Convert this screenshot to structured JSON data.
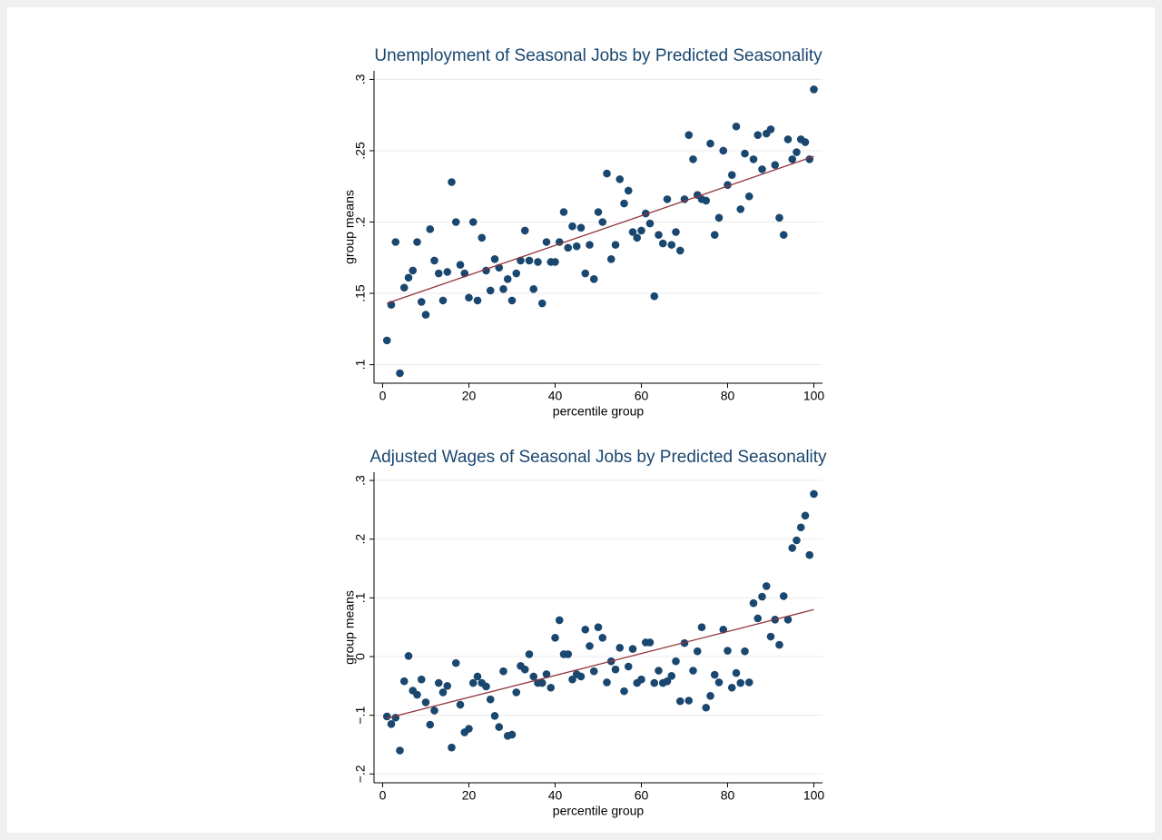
{
  "chart_data": [
    {
      "type": "scatter",
      "title": "Unemployment of Seasonal Jobs by Predicted Seasonality",
      "xlabel": "percentile group",
      "ylabel": "group means",
      "color": "#1a476f",
      "grid": true,
      "x": [
        1,
        2,
        3,
        4,
        5,
        6,
        7,
        8,
        9,
        10,
        11,
        12,
        13,
        14,
        15,
        16,
        17,
        18,
        19,
        20,
        21,
        22,
        23,
        24,
        25,
        26,
        27,
        28,
        29,
        30,
        31,
        32,
        33,
        34,
        35,
        36,
        37,
        38,
        39,
        40,
        41,
        42,
        43,
        44,
        45,
        46,
        47,
        48,
        49,
        50,
        51,
        52,
        53,
        54,
        55,
        56,
        57,
        58,
        59,
        60,
        61,
        62,
        63,
        64,
        65,
        66,
        67,
        68,
        69,
        70,
        71,
        72,
        73,
        74,
        75,
        76,
        77,
        78,
        79,
        80,
        81,
        82,
        83,
        84,
        85,
        86,
        87,
        88,
        89,
        90,
        91,
        92,
        93,
        94,
        95,
        96,
        97,
        98,
        99,
        100
      ],
      "values": [
        0.117,
        0.142,
        0.186,
        0.094,
        0.154,
        0.161,
        0.166,
        0.186,
        0.144,
        0.135,
        0.195,
        0.173,
        0.164,
        0.145,
        0.165,
        0.228,
        0.2,
        0.17,
        0.164,
        0.147,
        0.2,
        0.145,
        0.189,
        0.166,
        0.152,
        0.174,
        0.168,
        0.153,
        0.16,
        0.145,
        0.164,
        0.173,
        0.194,
        0.173,
        0.153,
        0.172,
        0.143,
        0.186,
        0.172,
        0.172,
        0.186,
        0.207,
        0.182,
        0.197,
        0.183,
        0.196,
        0.164,
        0.184,
        0.16,
        0.207,
        0.2,
        0.234,
        0.174,
        0.184,
        0.23,
        0.213,
        0.222,
        0.193,
        0.189,
        0.194,
        0.206,
        0.199,
        0.148,
        0.191,
        0.185,
        0.216,
        0.184,
        0.193,
        0.18,
        0.216,
        0.261,
        0.244,
        0.219,
        0.216,
        0.215,
        0.255,
        0.191,
        0.203,
        0.25,
        0.226,
        0.233,
        0.267,
        0.209,
        0.248,
        0.218,
        0.244,
        0.261,
        0.237,
        0.262,
        0.265,
        0.24,
        0.203,
        0.191,
        0.258,
        0.244,
        0.249,
        0.258,
        0.256,
        0.244,
        0.293
      ],
      "fit": {
        "x": [
          1,
          100
        ],
        "values": [
          0.143,
          0.246
        ],
        "color": "#90353b"
      },
      "xlim": [
        -2,
        102
      ],
      "ylim": [
        0.087,
        0.306
      ],
      "xticks": [
        0,
        20,
        40,
        60,
        80,
        100
      ],
      "yticks": [
        {
          "value": 0.1,
          "label": ".1"
        },
        {
          "value": 0.15,
          "label": ".15"
        },
        {
          "value": 0.2,
          "label": ".2"
        },
        {
          "value": 0.25,
          "label": ".25"
        },
        {
          "value": 0.3,
          "label": ".3"
        }
      ]
    },
    {
      "type": "scatter",
      "title": "Adjusted Wages of Seasonal Jobs by Predicted Seasonality",
      "xlabel": "percentile group",
      "ylabel": "group means",
      "color": "#1a476f",
      "grid": true,
      "x": [
        1,
        2,
        3,
        4,
        5,
        6,
        7,
        8,
        9,
        10,
        11,
        12,
        13,
        14,
        15,
        16,
        17,
        18,
        19,
        20,
        21,
        22,
        23,
        24,
        25,
        26,
        27,
        28,
        29,
        30,
        31,
        32,
        33,
        34,
        35,
        36,
        37,
        38,
        39,
        40,
        41,
        42,
        43,
        44,
        45,
        46,
        47,
        48,
        49,
        50,
        51,
        52,
        53,
        54,
        55,
        56,
        57,
        58,
        59,
        60,
        61,
        62,
        63,
        64,
        65,
        66,
        67,
        68,
        69,
        70,
        71,
        72,
        73,
        74,
        75,
        76,
        77,
        78,
        79,
        80,
        81,
        82,
        83,
        84,
        85,
        86,
        87,
        88,
        89,
        90,
        91,
        92,
        93,
        94,
        95,
        96,
        97,
        98,
        99,
        100
      ],
      "values": [
        -0.102,
        -0.115,
        -0.104,
        -0.16,
        -0.042,
        0.001,
        -0.058,
        -0.065,
        -0.039,
        -0.078,
        -0.116,
        -0.092,
        -0.045,
        -0.061,
        -0.05,
        -0.155,
        -0.011,
        -0.082,
        -0.129,
        -0.123,
        -0.045,
        -0.034,
        -0.045,
        -0.051,
        -0.073,
        -0.101,
        -0.12,
        -0.025,
        -0.135,
        -0.133,
        -0.061,
        -0.016,
        -0.022,
        0.004,
        -0.034,
        -0.045,
        -0.045,
        -0.03,
        -0.053,
        0.032,
        0.062,
        0.004,
        0.004,
        -0.039,
        -0.03,
        -0.034,
        0.046,
        0.018,
        -0.025,
        0.05,
        0.032,
        -0.044,
        -0.008,
        -0.022,
        0.015,
        -0.059,
        -0.017,
        0.013,
        -0.045,
        -0.039,
        0.024,
        0.024,
        -0.045,
        -0.024,
        -0.045,
        -0.042,
        -0.033,
        -0.008,
        -0.076,
        0.023,
        -0.075,
        -0.024,
        0.009,
        0.05,
        -0.087,
        -0.067,
        -0.031,
        -0.044,
        0.046,
        0.01,
        -0.053,
        -0.028,
        -0.045,
        0.009,
        -0.044,
        0.091,
        0.065,
        0.102,
        0.12,
        0.034,
        0.063,
        0.02,
        0.103,
        0.063,
        0.185,
        0.198,
        0.22,
        0.24,
        0.173,
        0.277
      ],
      "fit": {
        "x": [
          1,
          100
        ],
        "values": [
          -0.105,
          0.08
        ],
        "color": "#90353b"
      },
      "xlim": [
        -2,
        102
      ],
      "ylim": [
        -0.215,
        0.314
      ],
      "xticks": [
        0,
        20,
        40,
        60,
        80,
        100
      ],
      "yticks": [
        {
          "value": -0.2,
          "label": "−.2"
        },
        {
          "value": -0.1,
          "label": "−.1"
        },
        0,
        {
          "value": 0.1,
          "label": ".1"
        },
        {
          "value": 0.2,
          "label": ".2"
        },
        {
          "value": 0.3,
          "label": ".3"
        }
      ]
    }
  ]
}
